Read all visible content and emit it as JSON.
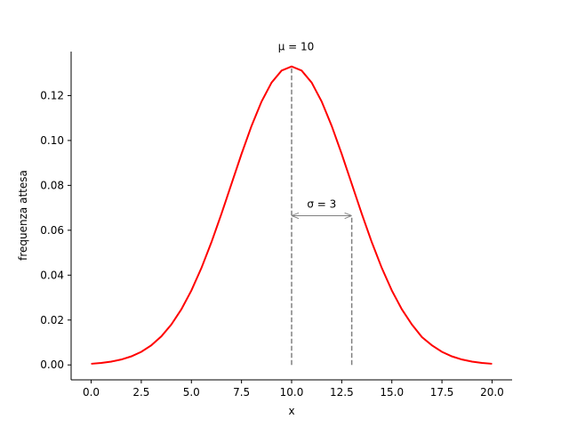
{
  "chart_data": {
    "type": "line",
    "xlabel": "x",
    "ylabel": "frequenza attesa",
    "x": [
      0,
      0.5,
      1,
      1.5,
      2,
      2.5,
      3,
      3.5,
      4,
      4.5,
      5,
      5.5,
      6,
      6.5,
      7,
      7.5,
      8,
      8.5,
      9,
      9.5,
      10,
      10.5,
      11,
      11.5,
      12,
      12.5,
      13,
      13.5,
      14,
      14.5,
      15,
      15.5,
      16,
      16.5,
      17,
      17.5,
      18,
      18.5,
      19,
      19.5,
      20
    ],
    "series": [
      {
        "color": "#ff0000",
        "values": [
          0.00051,
          0.00088,
          0.00148,
          0.0024,
          0.0038,
          0.00584,
          0.00874,
          0.01272,
          0.018,
          0.02477,
          0.03316,
          0.04317,
          0.05467,
          0.06733,
          0.08066,
          0.09397,
          0.10648,
          0.11736,
          0.12579,
          0.13115,
          0.13298,
          0.13115,
          0.12579,
          0.11736,
          0.10648,
          0.09397,
          0.08066,
          0.06733,
          0.05467,
          0.04317,
          0.03316,
          0.02477,
          0.018,
          0.0124,
          0.00874,
          0.00584,
          0.0038,
          0.0024,
          0.00148,
          0.00088,
          0.00051
        ]
      }
    ],
    "mu": 10,
    "sigma": 3,
    "mu_label": "μ = 10",
    "sigma_label": "σ = 3",
    "annotation_color": "#808080",
    "xlim": [
      -1,
      21
    ],
    "xticks": [
      {
        "value": 0,
        "label": "0.0"
      },
      2.5,
      {
        "value": 5,
        "label": "5.0"
      },
      7.5,
      {
        "value": 10,
        "label": "10.0"
      },
      12.5,
      {
        "value": 15,
        "label": "15.0"
      },
      17.5,
      {
        "value": 20,
        "label": "20.0"
      }
    ],
    "ylim": [
      -0.00665,
      0.1396
    ],
    "yticks": [
      {
        "value": 0,
        "label": "0.00"
      },
      {
        "value": 0.02,
        "label": "0.02"
      },
      {
        "value": 0.04,
        "label": "0.04"
      },
      {
        "value": 0.06,
        "label": "0.06"
      },
      {
        "value": 0.08,
        "label": "0.08"
      },
      {
        "value": 0.1,
        "label": "0.10"
      },
      {
        "value": 0.12,
        "label": "0.12"
      }
    ],
    "grid": false
  }
}
